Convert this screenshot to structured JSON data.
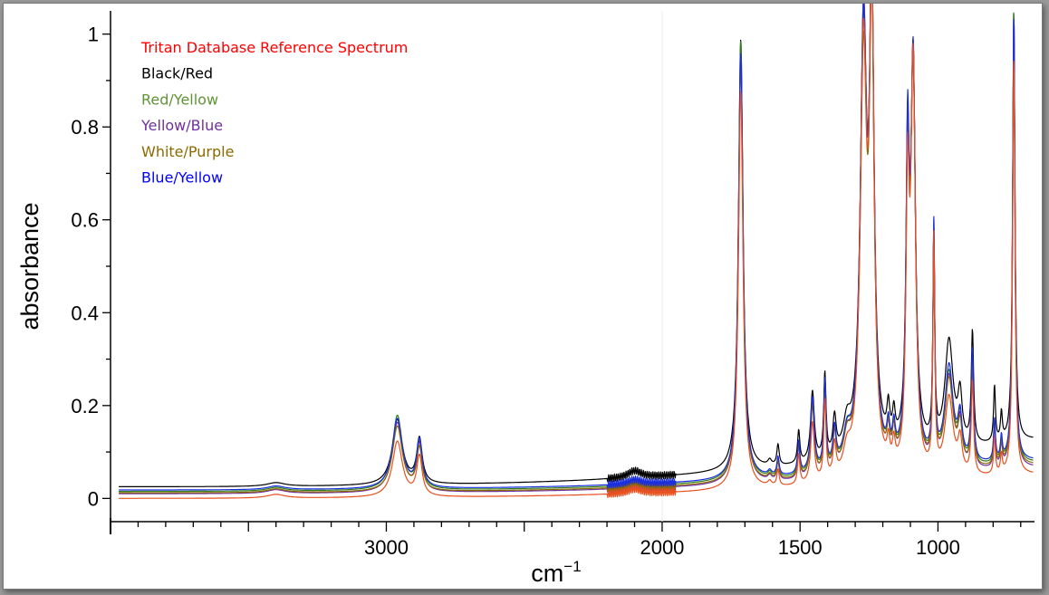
{
  "chart_data": {
    "type": "line",
    "title": "",
    "xlabel": "cm",
    "xlabel_sup": "−1",
    "ylabel": "absorbance",
    "xlim": [
      4000,
      650
    ],
    "x_reversed": true,
    "ylim": [
      -0.05,
      1.05
    ],
    "x_ticks": [
      3000,
      2000,
      1500,
      1000
    ],
    "x_tick_labels": [
      "3000",
      "2000",
      "1500",
      "1000"
    ],
    "y_ticks": [
      0,
      0.2,
      0.4,
      0.6,
      0.8,
      1
    ],
    "y_tick_labels": [
      "0",
      "0.2",
      "0.4",
      "0.6",
      "0.8",
      "1"
    ],
    "grid": false,
    "legend_placement": "top-left",
    "peaks_x": [
      3400,
      2960,
      2880,
      2100,
      1715,
      1610,
      1580,
      1505,
      1455,
      1410,
      1375,
      1330,
      1270,
      1240,
      1180,
      1160,
      1110,
      1090,
      1015,
      960,
      920,
      875,
      795,
      770,
      725
    ],
    "peak_widths": [
      40,
      22,
      12,
      30,
      10,
      8,
      5,
      5,
      8,
      5,
      7,
      16,
      14,
      10,
      6,
      6,
      7,
      10,
      4,
      18,
      9,
      5,
      4,
      4,
      5
    ],
    "series": [
      {
        "name": "Tritan Database Reference Spectrum",
        "color": "#ff0000",
        "line_color": "#e8501e",
        "baseline_start": 0.0,
        "baseline_end": 0.05,
        "peaks": [
          0.008,
          0.12,
          0.085,
          0.01,
          0.86,
          0.01,
          0.035,
          0.065,
          0.13,
          0.17,
          0.07,
          0.05,
          0.9,
          0.97,
          0.05,
          0.05,
          0.56,
          0.87,
          0.5,
          0.17,
          0.07,
          0.2,
          0.08,
          0.04,
          0.9
        ]
      },
      {
        "name": "Black/Red",
        "color": "#000000",
        "line_color": "#000000",
        "baseline_start": 0.025,
        "baseline_end": 0.125,
        "peaks": [
          0.008,
          0.14,
          0.095,
          0.015,
          0.93,
          0.012,
          0.045,
          0.07,
          0.15,
          0.18,
          0.08,
          0.06,
          0.88,
          0.94,
          0.07,
          0.06,
          0.58,
          0.8,
          0.42,
          0.23,
          0.1,
          0.24,
          0.12,
          0.06,
          0.93
        ]
      },
      {
        "name": "Red/Yellow",
        "color": "#5f9437",
        "line_color": "#2e7d1e",
        "baseline_start": 0.015,
        "baseline_end": 0.075,
        "peaks": [
          0.008,
          0.16,
          0.1,
          0.01,
          0.95,
          0.01,
          0.04,
          0.07,
          0.16,
          0.19,
          0.08,
          0.06,
          0.93,
          0.97,
          0.06,
          0.06,
          0.6,
          0.85,
          0.5,
          0.2,
          0.09,
          0.24,
          0.09,
          0.05,
          0.98
        ]
      },
      {
        "name": "Yellow/Blue",
        "color": "#7030a0",
        "line_color": "#7030a0",
        "baseline_start": 0.01,
        "baseline_end": 0.065,
        "peaks": [
          0.008,
          0.15,
          0.1,
          0.01,
          0.93,
          0.01,
          0.04,
          0.07,
          0.16,
          0.19,
          0.08,
          0.06,
          0.94,
          0.95,
          0.06,
          0.06,
          0.6,
          0.86,
          0.49,
          0.2,
          0.09,
          0.23,
          0.09,
          0.05,
          0.96
        ]
      },
      {
        "name": "White/Purple",
        "color": "#8d6a00",
        "line_color": "#8d6a00",
        "baseline_start": 0.012,
        "baseline_end": 0.07,
        "peaks": [
          0.008,
          0.14,
          0.09,
          0.01,
          0.9,
          0.01,
          0.04,
          0.07,
          0.15,
          0.18,
          0.08,
          0.06,
          0.86,
          0.93,
          0.06,
          0.06,
          0.57,
          0.86,
          0.5,
          0.19,
          0.08,
          0.22,
          0.09,
          0.05,
          0.95
        ]
      },
      {
        "name": "Blue/Yellow",
        "color": "#0000ff",
        "line_color": "#1a2ee0",
        "baseline_start": 0.018,
        "baseline_end": 0.08,
        "peaks": [
          0.008,
          0.15,
          0.1,
          0.01,
          0.92,
          0.01,
          0.04,
          0.07,
          0.16,
          0.19,
          0.08,
          0.06,
          0.91,
          0.95,
          0.06,
          0.06,
          0.63,
          0.85,
          0.5,
          0.21,
          0.09,
          0.24,
          0.09,
          0.05,
          0.96
        ]
      }
    ]
  }
}
